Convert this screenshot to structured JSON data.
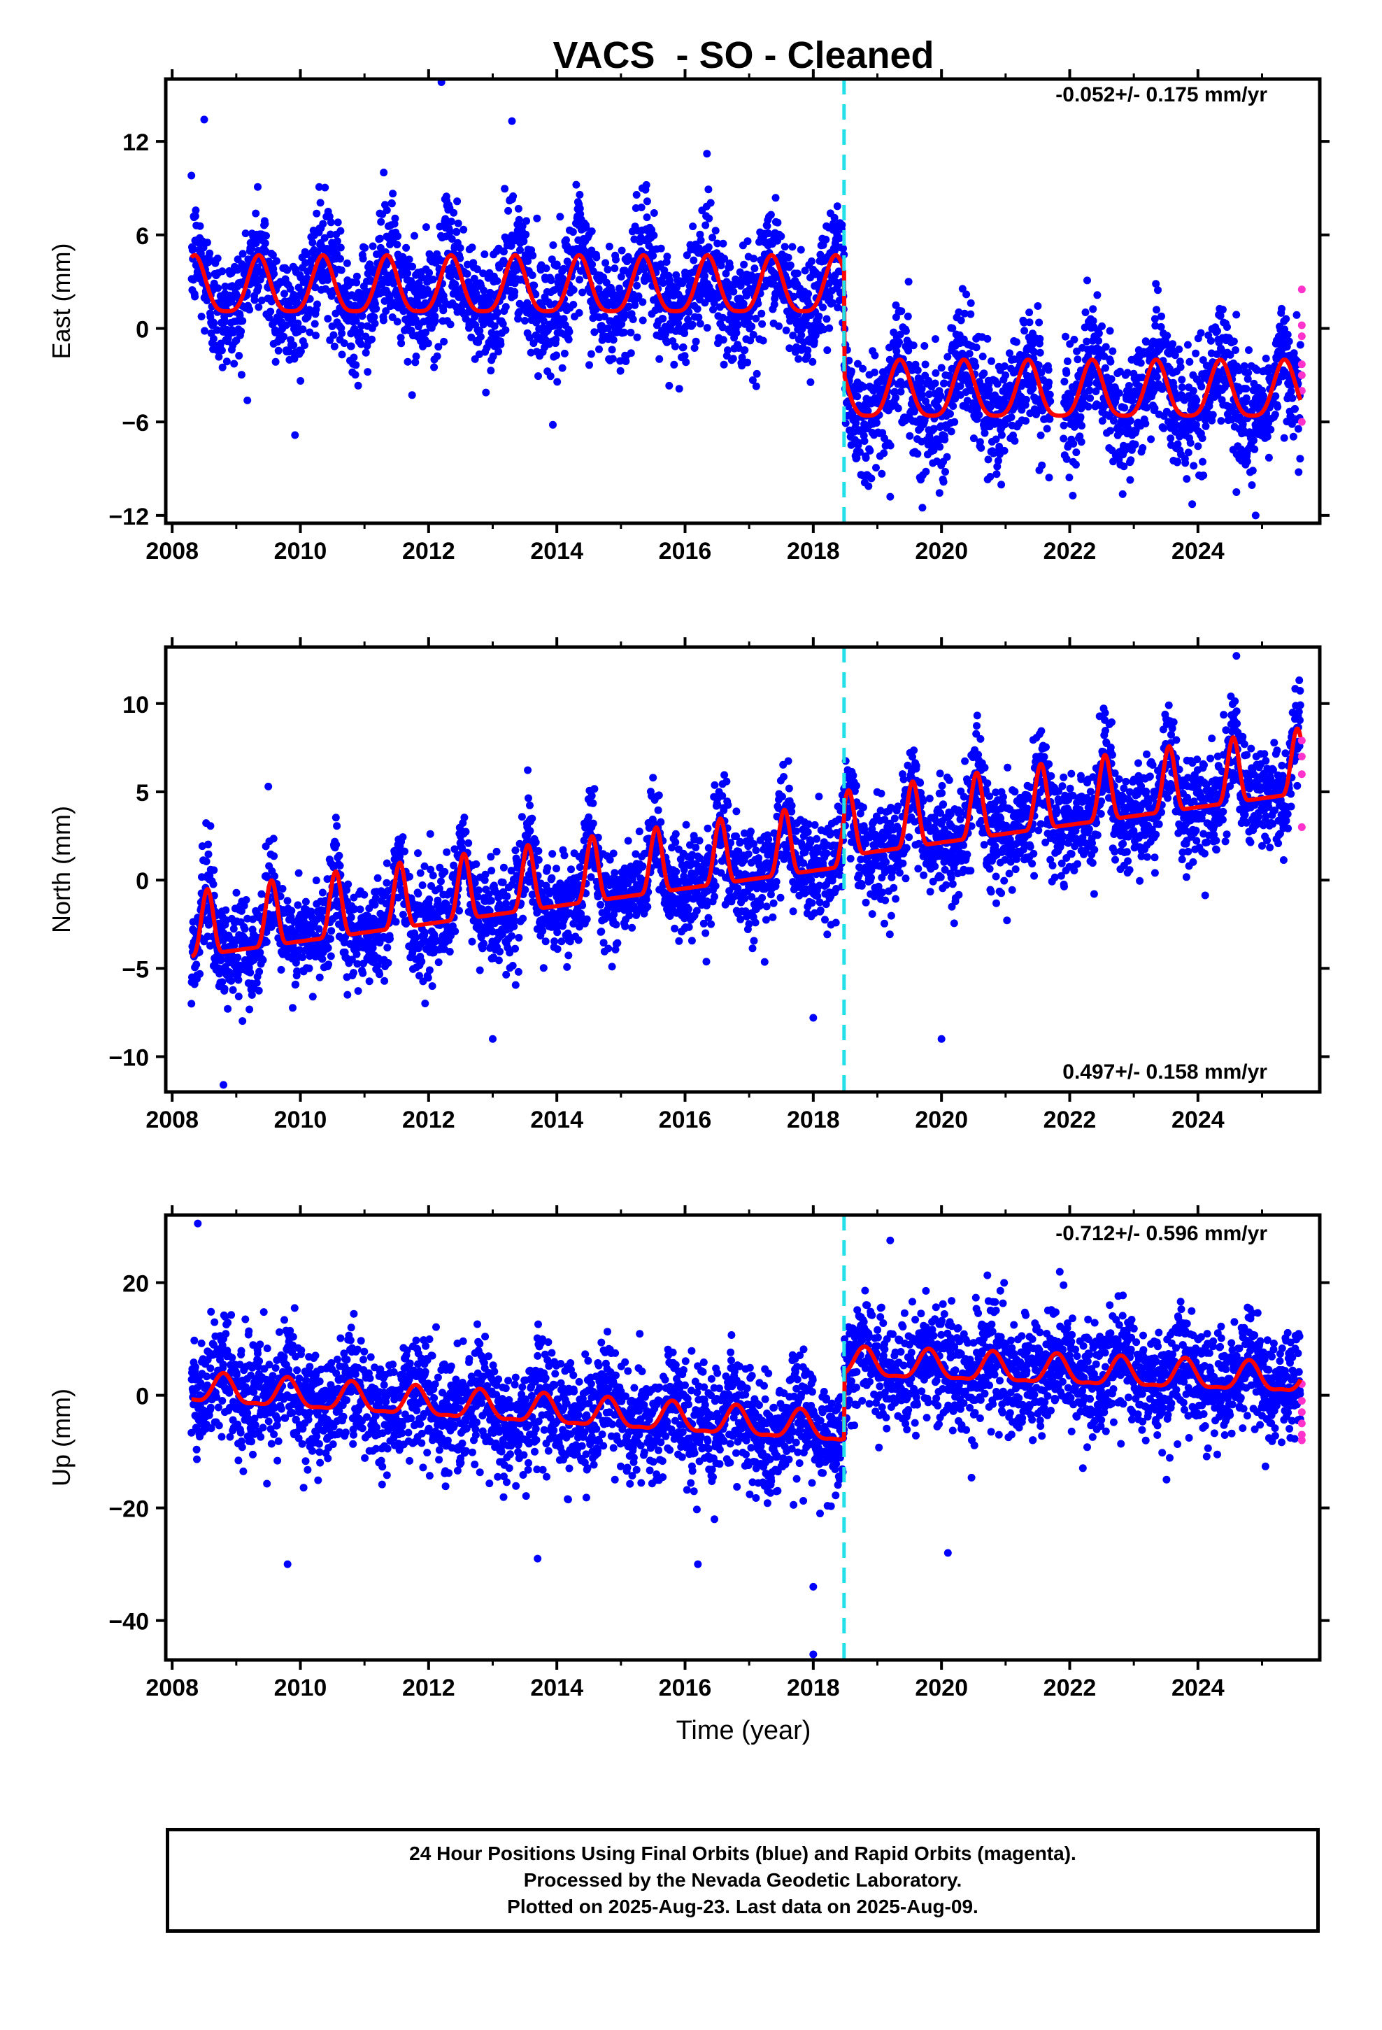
{
  "title": "VACS  - SO - Cleaned",
  "xlabel": "Time (year)",
  "colors": {
    "final_orbits": "#0000ff",
    "rapid_orbits": "#ff33cc",
    "model": "#ff0000",
    "offset_line": "#22e0e8"
  },
  "caption": {
    "line1": "24 Hour Positions Using Final Orbits (blue) and Rapid Orbits (magenta).",
    "line2": "Processed by the Nevada Geodetic Laboratory.",
    "line3": "Plotted on 2025-Aug-23. Last data on 2025-Aug-09."
  },
  "chart_data": [
    {
      "type": "scatter",
      "name_key": "east",
      "ylabel": "East (mm)",
      "rate_label": "-0.052+/- 0.175 mm/yr",
      "xlim": [
        2007.9,
        2025.9
      ],
      "ylim": [
        -12.5,
        16
      ],
      "yticks": [
        12,
        6,
        0,
        -6,
        -12
      ],
      "ytick_labels": [
        "12",
        "6",
        "0",
        "−6",
        "−12"
      ],
      "xticks": [
        2008,
        2010,
        2012,
        2014,
        2016,
        2018,
        2020,
        2022,
        2024
      ],
      "xtick_labels": [
        "2008",
        "2010",
        "2012",
        "2014",
        "2016",
        "2018",
        "2020",
        "2022",
        "2024"
      ],
      "data_start": 2008.3,
      "data_end": 2025.6,
      "offset_epoch": 2018.48,
      "model": {
        "before": {
          "mean": 2.5,
          "amp": 1.8,
          "phase": 2008.35
        },
        "after": {
          "mean": -4.2,
          "amp": 1.8,
          "phase": 2008.35
        }
      },
      "noise_sd": 1.9,
      "outliers": [
        [
          2012.2,
          15.8
        ],
        [
          2008.5,
          13.4
        ],
        [
          2013.3,
          13.3
        ],
        [
          2011.3,
          10.0
        ],
        [
          2024.9,
          -12.0
        ],
        [
          2024.6,
          -10.5
        ],
        [
          2019.2,
          -10.8
        ]
      ],
      "rapid_points": [
        [
          2025.62,
          2.5
        ],
        [
          2025.62,
          0.2
        ],
        [
          2025.62,
          -0.5
        ],
        [
          2025.62,
          -2.3
        ],
        [
          2025.62,
          -3.0
        ],
        [
          2025.62,
          -4.0
        ],
        [
          2025.62,
          -6.0
        ]
      ]
    },
    {
      "type": "scatter",
      "name_key": "north",
      "ylabel": "North (mm)",
      "rate_label": "0.497+/- 0.158 mm/yr",
      "xlim": [
        2007.9,
        2025.9
      ],
      "ylim": [
        -12,
        13.2
      ],
      "yticks": [
        10,
        5,
        0,
        -5,
        -10
      ],
      "ytick_labels": [
        "10",
        "5",
        "0",
        "−5",
        "−10"
      ],
      "xticks": [
        2008,
        2010,
        2012,
        2014,
        2016,
        2018,
        2020,
        2022,
        2024
      ],
      "xtick_labels": [
        "2008",
        "2010",
        "2012",
        "2014",
        "2016",
        "2018",
        "2020",
        "2022",
        "2024"
      ],
      "data_start": 2008.3,
      "data_end": 2025.6,
      "offset_epoch": 2018.48,
      "model": {
        "start": -3.4,
        "rate": 0.5,
        "amp": 2.3,
        "phase": 2008.55
      },
      "noise_sd": 1.4,
      "outliers": [
        [
          2008.8,
          -11.6
        ],
        [
          2024.6,
          12.7
        ],
        [
          2009.5,
          5.3
        ],
        [
          2020.0,
          -9.0
        ],
        [
          2013.0,
          -9.0
        ],
        [
          2018.0,
          -7.8
        ]
      ],
      "rapid_points": [
        [
          2025.62,
          7.9
        ],
        [
          2025.62,
          7.0
        ],
        [
          2025.62,
          6.0
        ],
        [
          2025.62,
          3.0
        ]
      ]
    },
    {
      "type": "scatter",
      "name_key": "up",
      "ylabel": "Up (mm)",
      "rate_label": "-0.712+/- 0.596 mm/yr",
      "xlim": [
        2007.9,
        2025.9
      ],
      "ylim": [
        -47,
        32
      ],
      "yticks": [
        20,
        0,
        -20,
        -40
      ],
      "ytick_labels": [
        "20",
        "0",
        "−20",
        "−40"
      ],
      "xticks": [
        2008,
        2010,
        2012,
        2014,
        2016,
        2018,
        2020,
        2022,
        2024
      ],
      "xtick_labels": [
        "2008",
        "2010",
        "2012",
        "2014",
        "2016",
        "2018",
        "2020",
        "2022",
        "2024"
      ],
      "data_start": 2008.3,
      "data_end": 2025.6,
      "offset_epoch": 2018.48,
      "model": {
        "before_start": 1.0,
        "before_rate": -0.7,
        "after_start": 5.5,
        "after_rate": -0.4,
        "amp": 2.5,
        "phase": 2008.8
      },
      "noise_sd": 5.0,
      "outliers": [
        [
          2008.4,
          30.5
        ],
        [
          2018.0,
          -46
        ],
        [
          2018.0,
          -34
        ],
        [
          2009.8,
          -30
        ],
        [
          2016.2,
          -30
        ],
        [
          2013.7,
          -29
        ],
        [
          2020.1,
          -28
        ],
        [
          2019.2,
          27.5
        ]
      ],
      "rapid_points": [
        [
          2025.62,
          2.0
        ],
        [
          2025.62,
          -1.0
        ],
        [
          2025.62,
          -3.0
        ],
        [
          2025.62,
          -5.0
        ],
        [
          2025.62,
          -7.0
        ],
        [
          2025.62,
          -8.0
        ]
      ]
    }
  ]
}
